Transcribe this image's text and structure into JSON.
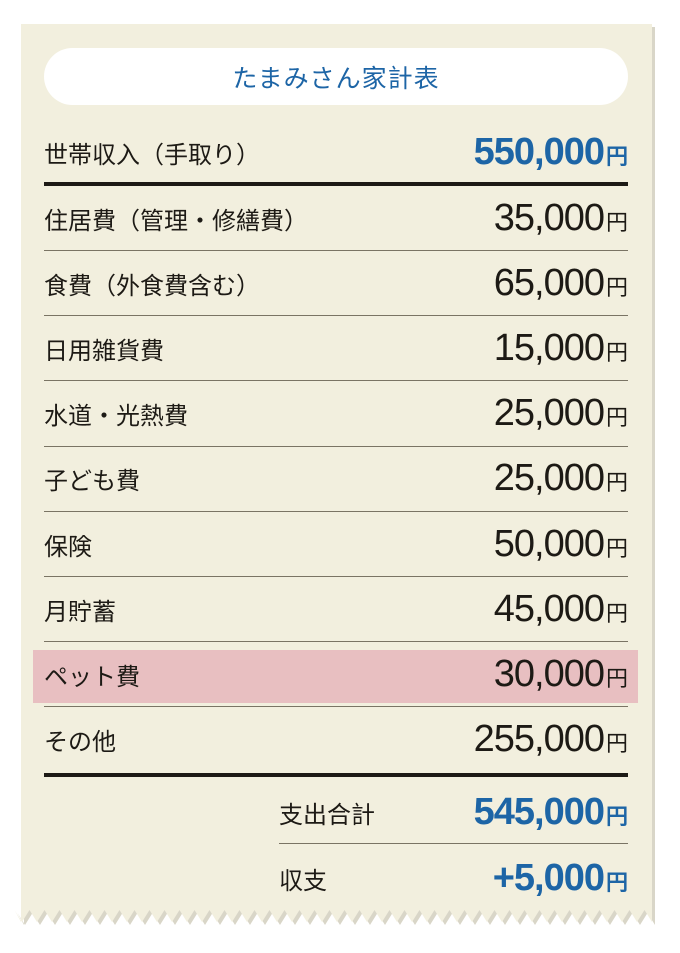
{
  "title": "たまみさん家計表",
  "income": {
    "label": "世帯収入（手取り）",
    "amount": "550,000",
    "unit": "円"
  },
  "expenses": [
    {
      "label": "住居費（管理・修繕費）",
      "amount": "35,000",
      "unit": "円"
    },
    {
      "label": "食費（外食費含む）",
      "amount": "65,000",
      "unit": "円"
    },
    {
      "label": "日用雑貨費",
      "amount": "15,000",
      "unit": "円"
    },
    {
      "label": "水道・光熱費",
      "amount": "25,000",
      "unit": "円"
    },
    {
      "label": "子ども費",
      "amount": "25,000",
      "unit": "円"
    },
    {
      "label": "保険",
      "amount": "50,000",
      "unit": "円"
    },
    {
      "label": "月貯蓄",
      "amount": "45,000",
      "unit": "円"
    },
    {
      "label": "ペット費",
      "amount": "30,000",
      "unit": "円",
      "highlighted": true
    },
    {
      "label": "その他",
      "amount": "255,000",
      "unit": "円"
    }
  ],
  "total": {
    "label": "支出合計",
    "amount": "545,000",
    "unit": "円"
  },
  "balance": {
    "label": "収支",
    "amount": "+5,000",
    "unit": "円"
  },
  "colors": {
    "paper": "#f2efde",
    "accent": "#1d65a6",
    "highlight": "#e8bfc1",
    "text": "#1d1a15"
  }
}
